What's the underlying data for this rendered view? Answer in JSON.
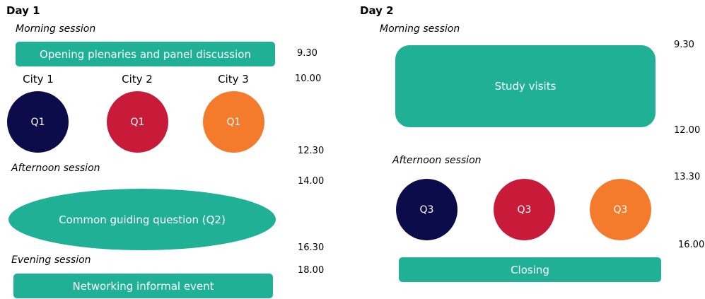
{
  "colors": {
    "teal": "#1fb096",
    "navy": "#0d0c4a",
    "red": "#c81b3a",
    "orange": "#f47b2b"
  },
  "day1": {
    "title": "Day 1",
    "morning_label": "Morning session",
    "opening_box": "Opening plenaries and panel discussion",
    "cities": [
      "City 1",
      "City 2",
      "City 3"
    ],
    "q1_labels": [
      "Q1",
      "Q1",
      "Q1"
    ],
    "afternoon_label": "Afternoon session",
    "common_question": "Common guiding question (Q2)",
    "evening_label": "Evening session",
    "networking_box": "Networking informal event",
    "times": [
      "9.30",
      "10.00",
      "12.30",
      "14.00",
      "16.30",
      "18.00"
    ]
  },
  "day2": {
    "title": "Day 2",
    "morning_label": "Morning session",
    "study_box": "Study visits",
    "afternoon_label": "Afternoon session",
    "q3_labels": [
      "Q3",
      "Q3",
      "Q3"
    ],
    "closing_box": "Closing",
    "times": [
      "9.30",
      "12.00",
      "13.30",
      "16.00"
    ]
  }
}
